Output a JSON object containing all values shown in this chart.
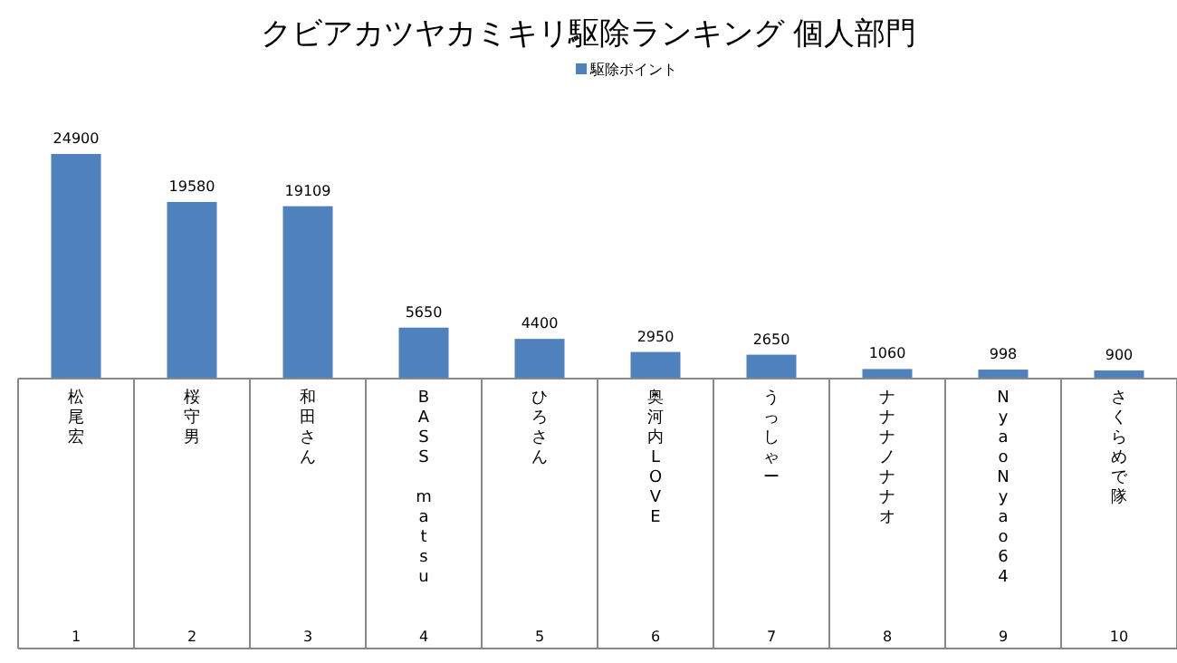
{
  "chart_data": {
    "type": "bar",
    "title": "クビアカツヤカミキリ駆除ランキング 個人部門",
    "categories": [
      "松尾宏",
      "桜守男",
      "和田さん",
      "BASS　matsu",
      "ひろさん",
      "奥河内LOVE",
      "うっしゃー",
      "ナナナノナナオ",
      "NyaoNyao64",
      "さくらめで隊"
    ],
    "series": [
      {
        "name": "駆除ポイント",
        "color": "#4f81bd",
        "values": [
          24900,
          19580,
          19109,
          5650,
          4400,
          2950,
          2650,
          1060,
          998,
          900
        ]
      }
    ],
    "data_labels": true,
    "legend": "top",
    "annotations": [
      "1",
      "2",
      "3",
      "4",
      "5",
      "6",
      "7",
      "8",
      "9",
      "10"
    ]
  }
}
